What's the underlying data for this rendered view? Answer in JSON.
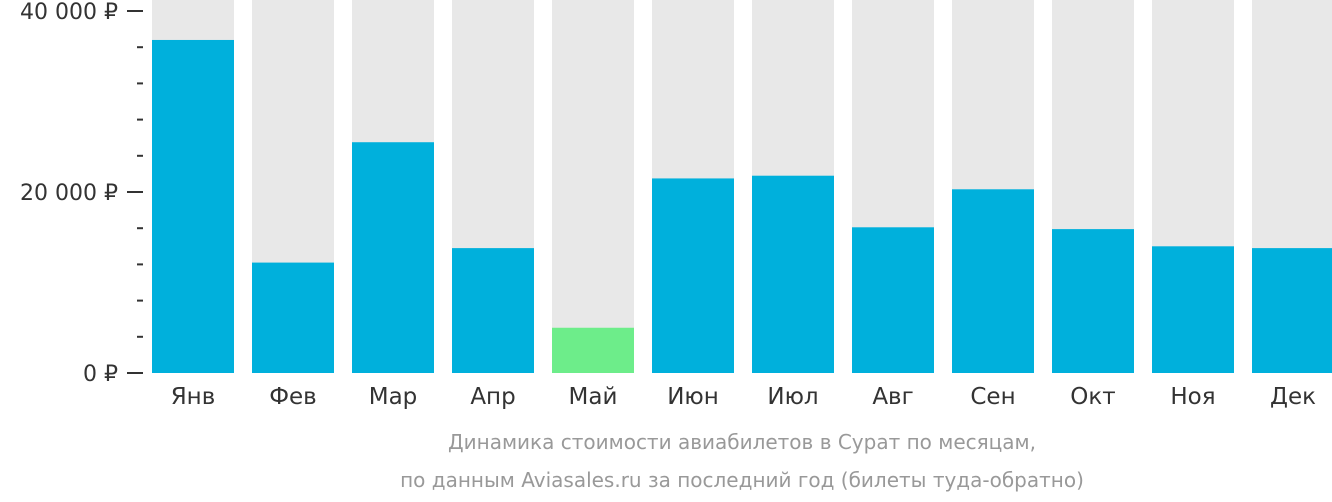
{
  "chart_data": {
    "type": "bar",
    "categories": [
      "Янв",
      "Фев",
      "Мар",
      "Апр",
      "Май",
      "Июн",
      "Июл",
      "Авг",
      "Сен",
      "Окт",
      "Ноя",
      "Дек"
    ],
    "values": [
      36800,
      12200,
      25500,
      13800,
      5000,
      21500,
      21800,
      16100,
      20300,
      15900,
      14000,
      13800
    ],
    "highlight_index": 4,
    "ylim": [
      0,
      40000
    ],
    "yticks": [
      {
        "value": 0,
        "label": "0 ₽"
      },
      {
        "value": 20000,
        "label": "20 000 ₽"
      },
      {
        "value": 40000,
        "label": "40 000 ₽"
      }
    ],
    "minor_tick_step": 4000,
    "title": "",
    "xlabel": "",
    "ylabel": "",
    "grid": false,
    "legend": "none",
    "colors": {
      "bar": "#00b0dc",
      "highlight": "#6ded8a",
      "background_bar": "#e8e8e8",
      "axis_text": "#333333",
      "caption_text": "#999999"
    }
  },
  "caption": {
    "line1": "Динамика стоимости авиабилетов в Сурат по месяцам,",
    "line2": "по данным Aviasales.ru за последний год (билеты туда-обратно)"
  }
}
